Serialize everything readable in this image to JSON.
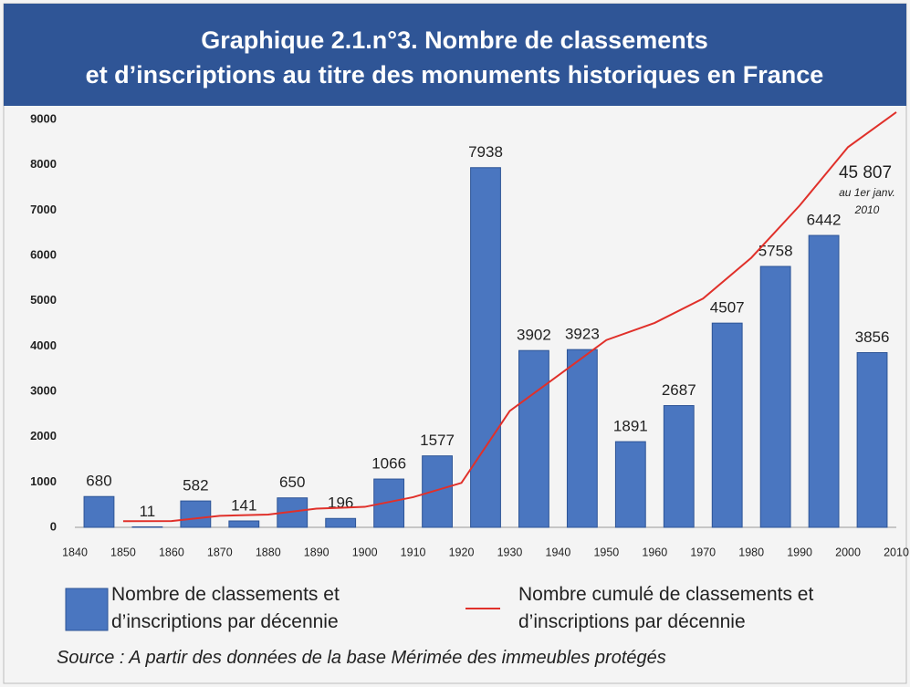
{
  "chart_data": {
    "type": "bar",
    "title": [
      "Graphique 2.1.n°3. Nombre de classements",
      "et d’inscriptions au titre des monuments historiques en France"
    ],
    "xlim": [
      1840,
      2010
    ],
    "xticks": [
      1840,
      1850,
      1860,
      1870,
      1880,
      1890,
      1900,
      1910,
      1920,
      1930,
      1940,
      1950,
      1960,
      1970,
      1980,
      1990,
      2000,
      2010
    ],
    "ylim": [
      0,
      9000
    ],
    "yticks": [
      0,
      1000,
      2000,
      3000,
      4000,
      5000,
      6000,
      7000,
      8000,
      9000
    ],
    "y2lim": [
      0,
      45000
    ],
    "series": [
      {
        "name": "Nombre de classements et d’inscriptions par décennie",
        "type": "bar",
        "color": "#4a76c0",
        "x": [
          1840,
          1850,
          1860,
          1870,
          1880,
          1890,
          1900,
          1910,
          1920,
          1930,
          1940,
          1950,
          1960,
          1970,
          1980,
          1990,
          2000
        ],
        "values": [
          680,
          11,
          582,
          141,
          650,
          196,
          1066,
          1577,
          7938,
          3902,
          3923,
          1891,
          2687,
          4507,
          5758,
          6442,
          3856
        ]
      },
      {
        "name": "Nombre cumulé de classements et d’inscriptions par décennie",
        "type": "line",
        "axis": "y2",
        "color": "#e0302a",
        "x": [
          1850,
          1860,
          1870,
          1880,
          1890,
          1900,
          1910,
          1920,
          1930,
          1940,
          1950,
          1960,
          1970,
          1980,
          1990,
          2000,
          2010
        ],
        "values": [
          680,
          691,
          1273,
          1414,
          2064,
          2260,
          3326,
          4903,
          12841,
          16743,
          20666,
          22557,
          25244,
          29751,
          35509,
          41951,
          45807
        ],
        "value_labels": [
          null,
          null,
          null,
          null,
          null,
          null,
          null,
          null,
          null,
          null,
          null,
          null,
          null,
          null,
          null,
          null,
          "45 807"
        ]
      }
    ],
    "annotation": [
      "au 1er janv.",
      "2010"
    ],
    "source": "Source : A partir des données de la base Mérimée des immeubles protégés"
  }
}
